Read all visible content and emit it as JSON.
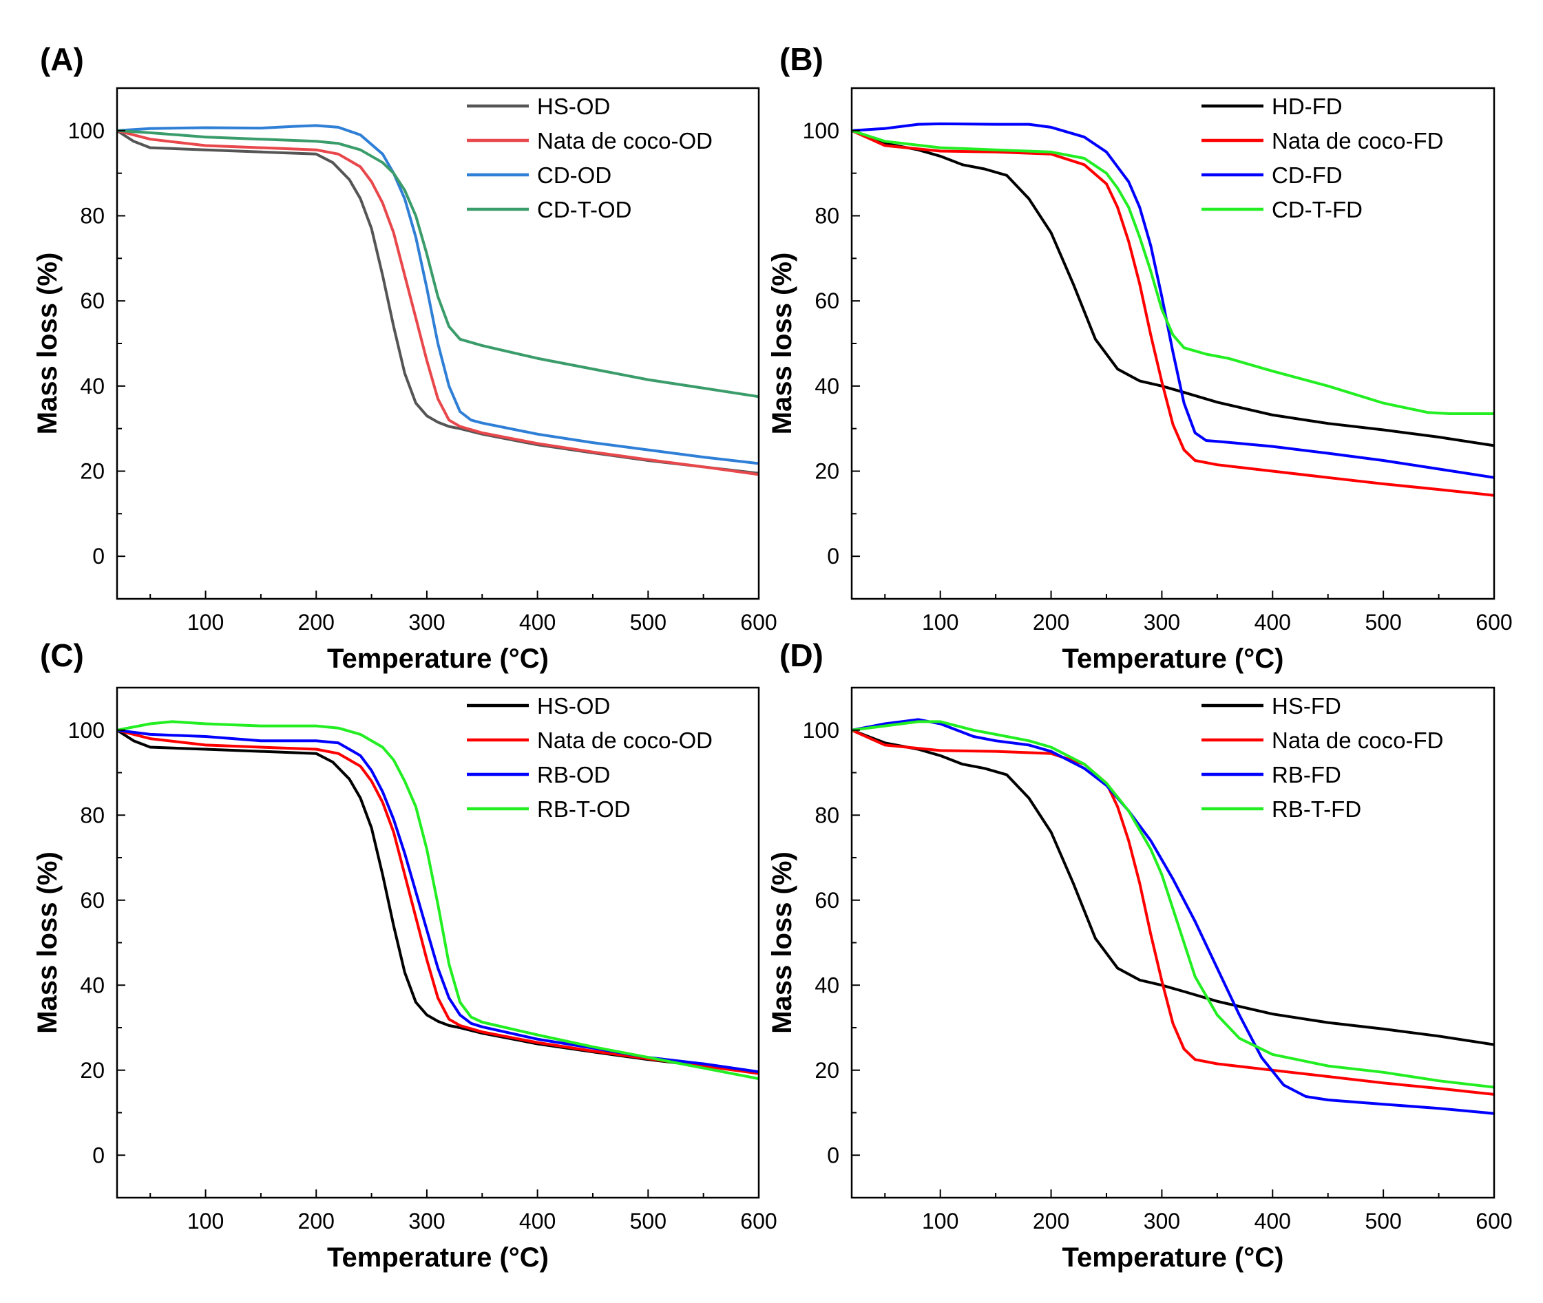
{
  "chart_data": [
    {
      "panel": "(A)",
      "type": "line",
      "xlabel": "Temperature (°C)",
      "ylabel": "Mass loss (%)",
      "xlim": [
        20,
        600
      ],
      "ylim": [
        -10,
        110
      ],
      "xticks": [
        100,
        200,
        300,
        400,
        500,
        600
      ],
      "yticks": [
        0,
        20,
        40,
        60,
        80,
        100
      ],
      "legend_position": "top-right",
      "series": [
        {
          "name": "HS-OD",
          "color": "#555555",
          "x": [
            20,
            35,
            50,
            100,
            150,
            200,
            215,
            230,
            240,
            250,
            260,
            270,
            280,
            290,
            300,
            310,
            320,
            330,
            350,
            400,
            450,
            500,
            550,
            600
          ],
          "y": [
            100,
            97.5,
            96,
            95.5,
            95,
            94.5,
            92.5,
            88.5,
            84,
            77,
            66,
            54,
            43,
            36,
            33,
            31.5,
            30.5,
            30,
            28.7,
            26.2,
            24.3,
            22.5,
            21,
            19.5
          ]
        },
        {
          "name": "Nata de coco-OD",
          "color": "#e8474b",
          "x": [
            20,
            50,
            100,
            150,
            200,
            220,
            240,
            250,
            260,
            270,
            280,
            290,
            300,
            310,
            320,
            330,
            350,
            400,
            450,
            500,
            550,
            600
          ],
          "y": [
            100,
            98,
            96.5,
            96,
            95.5,
            94.5,
            91.5,
            88,
            83,
            76,
            66,
            56,
            46,
            37,
            32,
            30.5,
            29,
            26.5,
            24.5,
            22.7,
            21,
            19.2
          ]
        },
        {
          "name": "CD-OD",
          "color": "#2f7fd6",
          "x": [
            20,
            50,
            100,
            150,
            180,
            200,
            220,
            240,
            260,
            270,
            280,
            290,
            300,
            310,
            320,
            330,
            340,
            350,
            400,
            450,
            500,
            550,
            600
          ],
          "y": [
            100,
            100.5,
            100.7,
            100.6,
            101,
            101.2,
            100.8,
            99,
            94.5,
            90,
            84,
            75,
            63,
            50,
            40,
            34,
            32,
            31.3,
            28.7,
            26.7,
            25,
            23.3,
            21.8
          ]
        },
        {
          "name": "CD-T-OD",
          "color": "#3a9c6a",
          "x": [
            20,
            50,
            100,
            150,
            200,
            220,
            240,
            260,
            270,
            280,
            290,
            300,
            310,
            320,
            330,
            350,
            400,
            450,
            500,
            550,
            600
          ],
          "y": [
            100,
            99.5,
            98.5,
            98,
            97.5,
            97,
            95.5,
            92.5,
            90,
            86,
            80,
            71,
            61,
            54,
            51,
            49.5,
            46.5,
            44,
            41.5,
            39.5,
            37.5
          ]
        }
      ]
    },
    {
      "panel": "(B)",
      "type": "line",
      "xlabel": "Temperature (°C)",
      "ylabel": "Mass loss (%)",
      "xlim": [
        20,
        600
      ],
      "ylim": [
        -10,
        110
      ],
      "xticks": [
        100,
        200,
        300,
        400,
        500,
        600
      ],
      "yticks": [
        0,
        20,
        40,
        60,
        80,
        100
      ],
      "legend_position": "top-right",
      "series": [
        {
          "name": "HD-FD",
          "color": "#000000",
          "x": [
            20,
            50,
            80,
            100,
            120,
            140,
            160,
            180,
            200,
            220,
            240,
            260,
            280,
            300,
            320,
            350,
            400,
            450,
            500,
            550,
            600
          ],
          "y": [
            100,
            97,
            95.5,
            94,
            92,
            91,
            89.5,
            84,
            76,
            64,
            51,
            44,
            41.2,
            40,
            38.5,
            36.2,
            33.2,
            31.2,
            29.7,
            28,
            26
          ]
        },
        {
          "name": "Nata de coco-FD",
          "color": "#ff0000",
          "x": [
            20,
            50,
            100,
            150,
            200,
            230,
            250,
            260,
            270,
            280,
            290,
            300,
            310,
            320,
            330,
            350,
            400,
            450,
            500,
            550,
            600
          ],
          "y": [
            100,
            96.5,
            95.2,
            95,
            94.5,
            92,
            87.5,
            82,
            74,
            64,
            52,
            41,
            31,
            25,
            22.5,
            21.5,
            20,
            18.5,
            17,
            15.7,
            14.3
          ]
        },
        {
          "name": "CD-FD",
          "color": "#0000ff",
          "x": [
            20,
            50,
            80,
            100,
            150,
            180,
            200,
            230,
            250,
            270,
            280,
            290,
            300,
            310,
            320,
            330,
            340,
            350,
            400,
            450,
            500,
            550,
            600
          ],
          "y": [
            100,
            100.5,
            101.5,
            101.6,
            101.5,
            101.5,
            100.8,
            98.5,
            95,
            88,
            82,
            73,
            61,
            48,
            36,
            29,
            27.2,
            27,
            25.8,
            24.2,
            22.5,
            20.5,
            18.5
          ]
        },
        {
          "name": "CD-T-FD",
          "color": "#22ee22",
          "x": [
            20,
            50,
            100,
            150,
            200,
            230,
            250,
            260,
            270,
            280,
            290,
            300,
            310,
            320,
            340,
            360,
            400,
            450,
            500,
            540,
            560,
            600
          ],
          "y": [
            100,
            97.5,
            96,
            95.5,
            95,
            93.5,
            90,
            86.5,
            82,
            75,
            67,
            58,
            52,
            49,
            47.5,
            46.5,
            43.5,
            40,
            36,
            33.8,
            33.5,
            33.5
          ]
        }
      ]
    },
    {
      "panel": "(C)",
      "type": "line",
      "xlabel": "Temperature (°C)",
      "ylabel": "Mass loss (%)",
      "xlim": [
        20,
        600
      ],
      "ylim": [
        -10,
        110
      ],
      "xticks": [
        100,
        200,
        300,
        400,
        500,
        600
      ],
      "yticks": [
        0,
        20,
        40,
        60,
        80,
        100
      ],
      "legend_position": "top-right",
      "series": [
        {
          "name": "HS-OD",
          "color": "#000000",
          "x": [
            20,
            35,
            50,
            100,
            150,
            200,
            215,
            230,
            240,
            250,
            260,
            270,
            280,
            290,
            300,
            310,
            320,
            330,
            350,
            400,
            450,
            500,
            550,
            600
          ],
          "y": [
            100,
            97.5,
            96,
            95.5,
            95,
            94.5,
            92.5,
            88.5,
            84,
            77,
            66,
            54,
            43,
            36,
            33,
            31.5,
            30.5,
            30,
            28.7,
            26.2,
            24.3,
            22.5,
            21,
            19.5
          ]
        },
        {
          "name": "Nata de coco-OD",
          "color": "#ff0000",
          "x": [
            20,
            50,
            100,
            150,
            200,
            220,
            240,
            250,
            260,
            270,
            280,
            290,
            300,
            310,
            320,
            330,
            350,
            400,
            450,
            500,
            550,
            600
          ],
          "y": [
            100,
            98,
            96.5,
            96,
            95.5,
            94.5,
            91.5,
            88,
            83,
            76,
            66,
            56,
            46,
            37,
            32,
            30.5,
            29,
            26.5,
            24.5,
            22.7,
            21,
            19.2
          ]
        },
        {
          "name": "RB-OD",
          "color": "#0000ff",
          "x": [
            20,
            50,
            100,
            150,
            200,
            220,
            240,
            250,
            260,
            270,
            280,
            290,
            300,
            310,
            320,
            330,
            340,
            350,
            400,
            450,
            500,
            550,
            600
          ],
          "y": [
            100,
            99,
            98.5,
            97.5,
            97.5,
            97,
            94,
            90.5,
            85.5,
            79,
            71,
            62,
            53,
            44,
            37,
            33,
            31,
            30.2,
            27.3,
            25.2,
            23,
            21.5,
            19.6
          ]
        },
        {
          "name": "RB-T-OD",
          "color": "#22ee22",
          "x": [
            20,
            50,
            70,
            100,
            150,
            200,
            220,
            240,
            260,
            270,
            280,
            290,
            300,
            310,
            320,
            330,
            340,
            350,
            400,
            450,
            500,
            550,
            600
          ],
          "y": [
            100,
            101.5,
            102,
            101.5,
            101,
            101,
            100.5,
            99,
            96,
            93,
            88,
            82,
            72,
            59,
            45,
            36,
            32.5,
            31.3,
            28.3,
            25.5,
            23,
            20.5,
            18
          ]
        }
      ]
    },
    {
      "panel": "(D)",
      "type": "line",
      "xlabel": "Temperature (°C)",
      "ylabel": "Mass loss (%)",
      "xlim": [
        20,
        600
      ],
      "ylim": [
        -10,
        110
      ],
      "xticks": [
        100,
        200,
        300,
        400,
        500,
        600
      ],
      "yticks": [
        0,
        20,
        40,
        60,
        80,
        100
      ],
      "legend_position": "top-right",
      "series": [
        {
          "name": "HS-FD",
          "color": "#000000",
          "x": [
            20,
            50,
            80,
            100,
            120,
            140,
            160,
            180,
            200,
            220,
            240,
            260,
            280,
            300,
            320,
            350,
            400,
            450,
            500,
            550,
            600
          ],
          "y": [
            100,
            97,
            95.5,
            94,
            92,
            91,
            89.5,
            84,
            76,
            64,
            51,
            44,
            41.2,
            40,
            38.5,
            36.2,
            33.2,
            31.2,
            29.7,
            28,
            26
          ]
        },
        {
          "name": "Nata de coco-FD",
          "color": "#ff0000",
          "x": [
            20,
            50,
            100,
            150,
            200,
            230,
            250,
            260,
            270,
            280,
            290,
            300,
            310,
            320,
            330,
            350,
            400,
            450,
            500,
            550,
            600
          ],
          "y": [
            100,
            96.5,
            95.2,
            95,
            94.5,
            92,
            87.5,
            82,
            74,
            64,
            52,
            41,
            31,
            25,
            22.5,
            21.5,
            20,
            18.5,
            17,
            15.7,
            14.3
          ]
        },
        {
          "name": "RB-FD",
          "color": "#0000ff",
          "x": [
            20,
            50,
            80,
            100,
            130,
            150,
            180,
            200,
            230,
            250,
            270,
            290,
            310,
            330,
            350,
            370,
            390,
            410,
            430,
            450,
            500,
            550,
            600
          ],
          "y": [
            100,
            101.5,
            102.5,
            101.5,
            98.5,
            97.5,
            96.5,
            95,
            91,
            87,
            81,
            74,
            65,
            55,
            44,
            33,
            23,
            16.5,
            13.8,
            13,
            12,
            11,
            9.8
          ]
        },
        {
          "name": "RB-T-FD",
          "color": "#22ee22",
          "x": [
            20,
            50,
            80,
            100,
            130,
            150,
            180,
            200,
            230,
            250,
            270,
            290,
            300,
            310,
            320,
            330,
            350,
            370,
            400,
            450,
            500,
            550,
            600
          ],
          "y": [
            100,
            101,
            102,
            102,
            100,
            99,
            97.5,
            96,
            92,
            87.5,
            81,
            72,
            66,
            58,
            50,
            42,
            33,
            27.5,
            23.7,
            21,
            19.5,
            17.5,
            16
          ]
        }
      ]
    }
  ]
}
